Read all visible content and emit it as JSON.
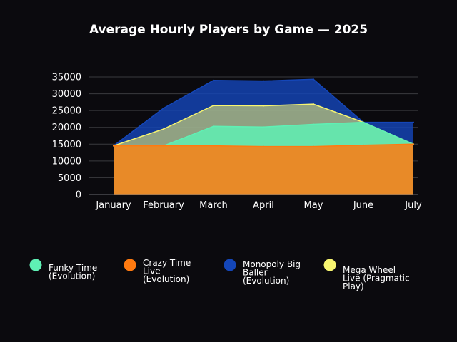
{
  "chart_data": {
    "type": "area",
    "title": "Average Hourly Players by Game — 2025",
    "xlabel": "",
    "ylabel": "",
    "categories": [
      "January",
      "February",
      "March",
      "April",
      "May",
      "June",
      "July"
    ],
    "ylim": [
      0,
      35000
    ],
    "yticks": [
      0,
      5000,
      10000,
      15000,
      20000,
      25000,
      30000,
      35000
    ],
    "grid": true,
    "legend_position": "bottom",
    "series": [
      {
        "name": "Funky Time (Evolution)",
        "color": "#5ff0b4",
        "values": [
          14500,
          14500,
          20300,
          20100,
          20900,
          21500,
          15000
        ]
      },
      {
        "name": "Crazy Time Live (Evolution)",
        "color": "#ff7a10",
        "values": [
          14500,
          14500,
          14500,
          14300,
          14300,
          14700,
          15000
        ]
      },
      {
        "name": "Monopoly Big Baller (Evolution)",
        "color": "#1446b8",
        "values": [
          14500,
          25700,
          34000,
          33800,
          34300,
          21500,
          21500
        ]
      },
      {
        "name": "Mega Wheel Live (Pragmatic Play)",
        "color": "#f7f570",
        "values": [
          14500,
          19500,
          26500,
          26400,
          26900,
          21500,
          15000
        ]
      }
    ]
  }
}
